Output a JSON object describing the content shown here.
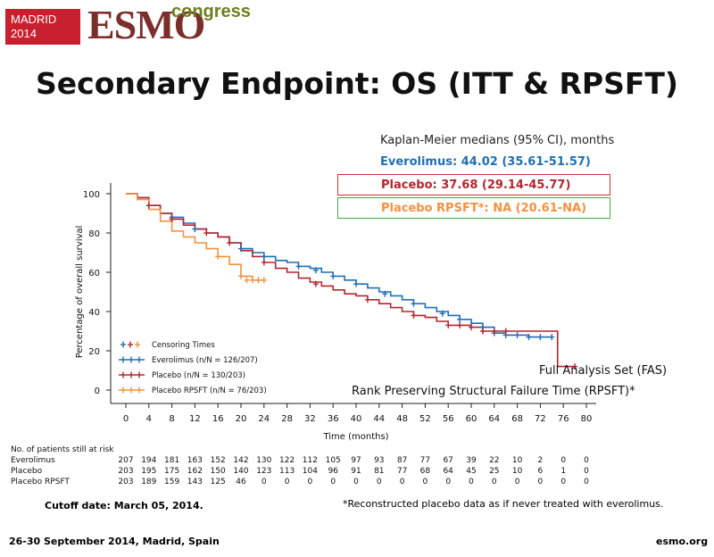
{
  "header": {
    "logo_city": "MADRID",
    "logo_year": "2014",
    "logo_brand": "ESMO",
    "logo_suffix": "congress",
    "title": "Secondary Endpoint:  OS (ITT & RPSFT)"
  },
  "medians": {
    "heading": "Kaplan-Meier medians (95% CI), months",
    "everolimus": "Everolimus: 44.02 (35.61-51.57)",
    "placebo": "Placebo: 37.68 (29.14-45.77)",
    "placebo_rpsft": "Placebo RPSFT*: NA (20.61-NA)"
  },
  "annotations": {
    "fas": "Full Analysis Set (FAS)",
    "rpsft": "Rank Preserving Structural Failure Time (RPSFT)*",
    "cutoff": "Cutoff date: March 05, 2014.",
    "footnote": "*Reconstructed placebo data as if never treated with everolimus."
  },
  "footer": {
    "location": "26-30 September 2014, Madrid, Spain",
    "site": "esmo.org"
  },
  "colors": {
    "everolimus": "#1f6fb5",
    "placebo": "#b3262f",
    "placebo_rpsft": "#f4913f",
    "placebo_box": "#d0312d",
    "rpsft_box": "#3fae49"
  },
  "chart_data": {
    "type": "line",
    "xlabel": "Time (months)",
    "ylabel": "Percentage of overall survival",
    "xlim": [
      0,
      80
    ],
    "ylim": [
      0,
      100
    ],
    "x_ticks": [
      0,
      4,
      8,
      12,
      16,
      20,
      24,
      28,
      32,
      36,
      40,
      44,
      48,
      52,
      56,
      60,
      64,
      68,
      72,
      76,
      80
    ],
    "y_ticks": [
      0,
      20,
      40,
      60,
      80,
      100
    ],
    "grid": false,
    "legend_position": "bottom-left",
    "legend": [
      {
        "label": "Censoring Times",
        "marker": "cross"
      },
      {
        "label": "Everolimus (n/N = 126/207)"
      },
      {
        "label": "Placebo (n/N = 130/203)"
      },
      {
        "label": "Placebo RPSFT (n/N = 76/203)"
      }
    ],
    "series": [
      {
        "name": "Everolimus",
        "x": [
          0,
          2,
          4,
          6,
          8,
          10,
          12,
          14,
          16,
          18,
          20,
          22,
          24,
          26,
          28,
          30,
          32,
          34,
          36,
          38,
          40,
          42,
          44,
          46,
          48,
          50,
          52,
          54,
          56,
          58,
          60,
          62,
          64,
          66,
          68,
          70,
          72,
          74
        ],
        "y": [
          100,
          98,
          94,
          90,
          88,
          85,
          82,
          80,
          78,
          75,
          72,
          70,
          68,
          66,
          65,
          63,
          62,
          60,
          58,
          56,
          54,
          52,
          50,
          48,
          46,
          44,
          42,
          40,
          38,
          36,
          34,
          32,
          29,
          28,
          28,
          27,
          27,
          27
        ]
      },
      {
        "name": "Placebo",
        "x": [
          0,
          2,
          4,
          6,
          8,
          10,
          12,
          14,
          16,
          18,
          20,
          22,
          24,
          26,
          28,
          30,
          32,
          34,
          36,
          38,
          40,
          42,
          44,
          46,
          48,
          50,
          52,
          54,
          56,
          58,
          60,
          62,
          64,
          66,
          68,
          70,
          72,
          74,
          75,
          75,
          78
        ],
        "y": [
          100,
          98,
          94,
          90,
          87,
          84,
          82,
          80,
          78,
          75,
          71,
          68,
          65,
          62,
          60,
          57,
          55,
          53,
          51,
          49,
          48,
          46,
          44,
          42,
          40,
          38,
          37,
          35,
          33,
          33,
          32,
          30,
          30,
          30,
          30,
          30,
          30,
          30,
          30,
          12,
          12
        ]
      },
      {
        "name": "Placebo RPSFT",
        "x": [
          0,
          2,
          4,
          6,
          8,
          10,
          12,
          14,
          16,
          18,
          20,
          22,
          24
        ],
        "y": [
          100,
          97,
          92,
          86,
          81,
          78,
          75,
          72,
          68,
          64,
          58,
          56,
          56
        ]
      }
    ],
    "censor_marks": {
      "Everolimus": [
        [
          4,
          94
        ],
        [
          8,
          88
        ],
        [
          12,
          82
        ],
        [
          20,
          72
        ],
        [
          24,
          68
        ],
        [
          30,
          63
        ],
        [
          33,
          61
        ],
        [
          36,
          58
        ],
        [
          40,
          54
        ],
        [
          45,
          49
        ],
        [
          50,
          44
        ],
        [
          55,
          39
        ],
        [
          58,
          36
        ],
        [
          62,
          32
        ],
        [
          64,
          29
        ],
        [
          66,
          28
        ],
        [
          68,
          28
        ],
        [
          70,
          27
        ],
        [
          72,
          27
        ],
        [
          74,
          27
        ]
      ],
      "Placebo": [
        [
          4,
          94
        ],
        [
          8,
          87
        ],
        [
          14,
          80
        ],
        [
          18,
          75
        ],
        [
          24,
          65
        ],
        [
          33,
          54
        ],
        [
          42,
          46
        ],
        [
          50,
          38
        ],
        [
          56,
          33
        ],
        [
          58,
          33
        ],
        [
          60,
          32
        ],
        [
          62,
          30
        ],
        [
          64,
          30
        ],
        [
          66,
          30
        ],
        [
          78,
          12
        ]
      ],
      "Placebo RPSFT": [
        [
          16,
          68
        ],
        [
          20,
          58
        ],
        [
          21,
          56
        ],
        [
          22,
          56
        ],
        [
          23,
          56
        ],
        [
          24,
          56
        ]
      ]
    },
    "at_risk": {
      "title": "No. of patients still at risk",
      "time_points": [
        0,
        4,
        8,
        12,
        16,
        20,
        24,
        28,
        32,
        36,
        40,
        44,
        48,
        52,
        56,
        60,
        64,
        68,
        72,
        76,
        80
      ],
      "rows": [
        {
          "label": "Everolimus",
          "values": [
            "207",
            "194",
            "181",
            "163",
            "152",
            "142",
            "130",
            "122",
            "112",
            "105",
            "97",
            "93",
            "87",
            "77",
            "67",
            "39",
            "22",
            "10",
            "2",
            "0",
            "0"
          ]
        },
        {
          "label": "Placebo",
          "values": [
            "203",
            "195",
            "175",
            "162",
            "150",
            "140",
            "123",
            "113",
            "104",
            "96",
            "91",
            "81",
            "77",
            "68",
            "64",
            "45",
            "25",
            "10",
            "6",
            "1",
            "0"
          ]
        },
        {
          "label": "Placebo RPSFT",
          "values": [
            "203",
            "189",
            "159",
            "143",
            "125",
            "46",
            "0",
            "0",
            "0",
            "0",
            "0",
            "0",
            "0",
            "0",
            "0",
            "0",
            "0",
            "0",
            "0",
            "0",
            "0"
          ]
        }
      ]
    }
  }
}
